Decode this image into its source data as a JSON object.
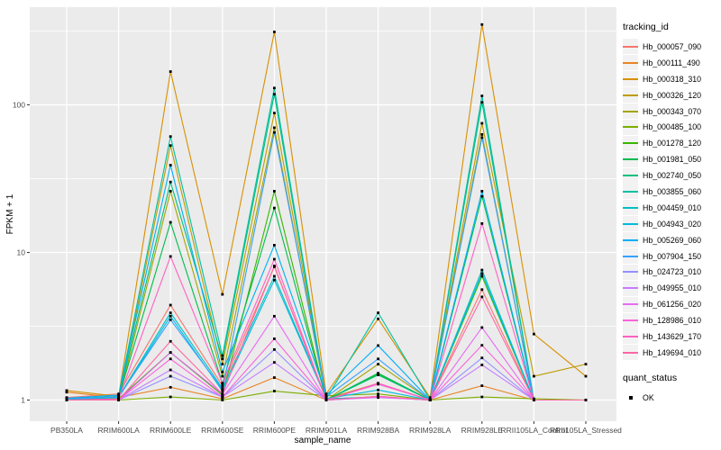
{
  "chart_data": {
    "type": "line",
    "title": "",
    "xlabel": "sample_name",
    "ylabel": "FPKM + 1",
    "y_scale": "log10",
    "y_ticks": [
      1,
      10,
      100
    ],
    "y_minor_ticks": [
      3.1623,
      31.623,
      316.23
    ],
    "ylim_approx": [
      0.95,
      460
    ],
    "grid": "on",
    "panel_bg": "#EBEBEB",
    "grid_color": "#FFFFFF",
    "tick_color": "#333333",
    "tick_label_color": "#4D4D4D",
    "point_shape": "filled-square",
    "point_color": "#000000",
    "legend_title": "tracking_id",
    "legend2_title": "quant_status",
    "legend2_items": [
      "OK"
    ],
    "categories": [
      "PB350LA",
      "RRIM600LA",
      "RRIM600LE",
      "RRIM600SE",
      "RRIM600PE",
      "RRIM901LA",
      "RRIM928BA",
      "RRIM928LA",
      "RRIM928LE",
      "RRII105LA_Control",
      "RRII105LA_Stressed"
    ],
    "series": [
      {
        "name": "Hb_000057_090",
        "color": "#F8766D",
        "values": [
          1.04,
          1.1,
          4.4,
          1.25,
          8.0,
          1.02,
          1.05,
          1.0,
          5.6,
          1.0,
          1.0
        ]
      },
      {
        "name": "Hb_000111_490",
        "color": "#E88526",
        "values": [
          1.13,
          1.04,
          1.22,
          1.02,
          1.42,
          1.0,
          1.06,
          1.0,
          1.25,
          1.0,
          1.0
        ]
      },
      {
        "name": "Hb_000318_310",
        "color": "#D89000",
        "values": [
          1.16,
          1.06,
          168,
          5.2,
          312,
          1.1,
          3.55,
          1.04,
          350,
          2.8,
          1.45
        ]
      },
      {
        "name": "Hb_000326_120",
        "color": "#C09B00",
        "values": [
          1.0,
          1.02,
          53,
          1.75,
          88,
          1.02,
          1.3,
          1.0,
          75,
          1.45,
          1.75
        ]
      },
      {
        "name": "Hb_000343_070",
        "color": "#A3A500",
        "values": [
          1.0,
          1.0,
          26,
          1.45,
          70,
          1.0,
          1.75,
          1.0,
          63,
          1.0,
          1.0
        ]
      },
      {
        "name": "Hb_000485_100",
        "color": "#7CAE00",
        "values": [
          1.0,
          1.0,
          1.05,
          1.0,
          1.15,
          1.07,
          1.1,
          1.0,
          1.05,
          1.02,
          1.0
        ]
      },
      {
        "name": "Hb_001278_120",
        "color": "#39B600",
        "values": [
          1.0,
          1.02,
          2.1,
          1.08,
          26,
          1.0,
          1.5,
          1.0,
          6.9,
          1.0,
          1.0
        ]
      },
      {
        "name": "Hb_001981_050",
        "color": "#00BB4E",
        "values": [
          1.0,
          1.04,
          16,
          1.3,
          20,
          1.0,
          1.52,
          1.0,
          24,
          1.0,
          1.0
        ]
      },
      {
        "name": "Hb_002740_050",
        "color": "#00BF7D",
        "values": [
          1.0,
          1.05,
          30,
          1.9,
          118,
          1.0,
          1.48,
          1.0,
          104,
          1.0,
          1.0
        ]
      },
      {
        "name": "Hb_003855_060",
        "color": "#00C1A3",
        "values": [
          1.02,
          1.06,
          61,
          2.0,
          130,
          1.02,
          3.9,
          1.0,
          115,
          1.0,
          1.0
        ]
      },
      {
        "name": "Hb_004459_010",
        "color": "#00BFC4",
        "values": [
          1.02,
          1.05,
          3.9,
          1.2,
          6.9,
          1.02,
          1.05,
          1.0,
          7.6,
          1.0,
          1.0
        ]
      },
      {
        "name": "Hb_004943_020",
        "color": "#00BAE0",
        "values": [
          1.02,
          1.04,
          3.7,
          1.15,
          6.5,
          1.02,
          1.17,
          1.0,
          7.2,
          1.0,
          1.0
        ]
      },
      {
        "name": "Hb_005269_060",
        "color": "#00B0F6",
        "values": [
          1.03,
          1.08,
          39,
          1.55,
          11.2,
          1.08,
          2.34,
          1.0,
          26,
          1.0,
          1.0
        ]
      },
      {
        "name": "Hb_007904_150",
        "color": "#35A2FF",
        "values": [
          1.02,
          1.05,
          3.5,
          1.18,
          65,
          1.05,
          1.9,
          1.0,
          60,
          1.0,
          1.0
        ]
      },
      {
        "name": "Hb_024723_010",
        "color": "#9590FF",
        "values": [
          1.0,
          1.0,
          1.45,
          1.05,
          2.2,
          1.0,
          1.05,
          1.0,
          1.93,
          1.0,
          1.0
        ]
      },
      {
        "name": "Hb_049955_010",
        "color": "#C77CFF",
        "values": [
          1.0,
          1.0,
          1.6,
          1.05,
          1.8,
          1.0,
          1.04,
          1.0,
          1.73,
          1.0,
          1.0
        ]
      },
      {
        "name": "Hb_061256_020",
        "color": "#E76BF3",
        "values": [
          1.0,
          1.0,
          2.1,
          1.1,
          3.7,
          1.0,
          1.05,
          1.0,
          3.1,
          1.0,
          1.0
        ]
      },
      {
        "name": "Hb_128986_010",
        "color": "#FA62DB",
        "values": [
          1.0,
          1.0,
          1.9,
          1.05,
          2.6,
          1.0,
          1.28,
          1.0,
          2.35,
          1.0,
          1.0
        ]
      },
      {
        "name": "Hb_143629_170",
        "color": "#FF61C3",
        "values": [
          1.0,
          1.02,
          9.4,
          1.3,
          9.0,
          1.0,
          1.3,
          1.0,
          15.7,
          1.0,
          1.0
        ]
      },
      {
        "name": "Hb_149694_010",
        "color": "#FF67A4",
        "values": [
          1.0,
          1.0,
          2.5,
          1.1,
          8.1,
          1.0,
          1.06,
          1.0,
          5.0,
          1.0,
          1.0
        ]
      }
    ]
  }
}
